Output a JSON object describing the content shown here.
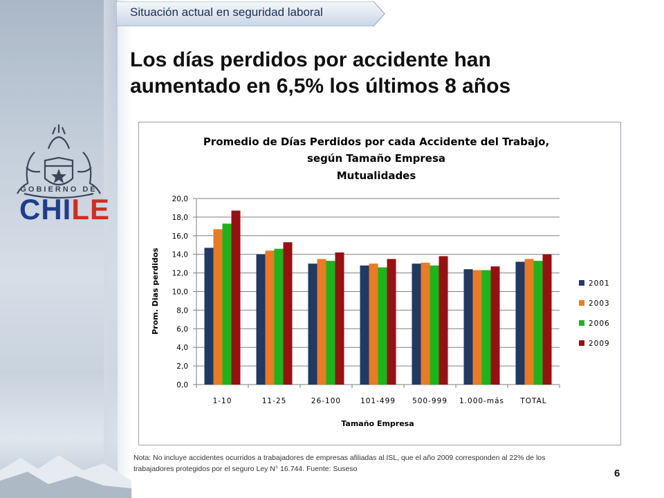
{
  "header": {
    "section_label": "Situación actual en seguridad laboral",
    "title_line1": "Los días perdidos por accidente han",
    "title_line2": "aumentado en 6,5% los últimos 8 años"
  },
  "logo": {
    "gobierno_de": "GOBIERNO DE",
    "chile_part1": "CHI",
    "chile_part2": "LE"
  },
  "chart_data": {
    "type": "bar",
    "title": "Promedio de Días Perdidos por cada Accidente del Trabajo,",
    "subtitle": "según Tamaño Empresa",
    "subtitle2": "Mutualidades",
    "xlabel": "Tamaño Empresa",
    "ylabel": "Prom. Dias perdidos",
    "ylim": [
      0,
      20
    ],
    "ytick_labels": [
      "0,0",
      "2,0",
      "4,0",
      "6,0",
      "8,0",
      "10,0",
      "12,0",
      "14,0",
      "16,0",
      "18,0",
      "20,0"
    ],
    "grid": true,
    "legend": "right",
    "categories": [
      "1-10",
      "11-25",
      "26-100",
      "101-499",
      "500-999",
      "1.000-más",
      "TOTAL"
    ],
    "series": [
      {
        "name": "2001",
        "color": "#1f3a64",
        "values": [
          14.7,
          14.0,
          13.0,
          12.8,
          13.0,
          12.4,
          13.2
        ]
      },
      {
        "name": "2003",
        "color": "#ec7a22",
        "values": [
          16.7,
          14.4,
          13.5,
          13.0,
          13.1,
          12.3,
          13.5
        ]
      },
      {
        "name": "2006",
        "color": "#1bb51b",
        "values": [
          17.3,
          14.6,
          13.3,
          12.6,
          12.8,
          12.3,
          13.3
        ]
      },
      {
        "name": "2009",
        "color": "#990f12",
        "values": [
          18.7,
          15.3,
          14.2,
          13.5,
          13.8,
          12.7,
          14.0
        ]
      }
    ]
  },
  "footer": {
    "note_line1": "Nota: No incluye accidentes ocurridos a trabajadores de empresas afiliadas al ISL, que el año 2009 corresponden al 22% de los",
    "note_line2": "trabajadores protegidos por el seguro Ley N° 16.744. Fuente: Suseso",
    "page_number": "6"
  }
}
